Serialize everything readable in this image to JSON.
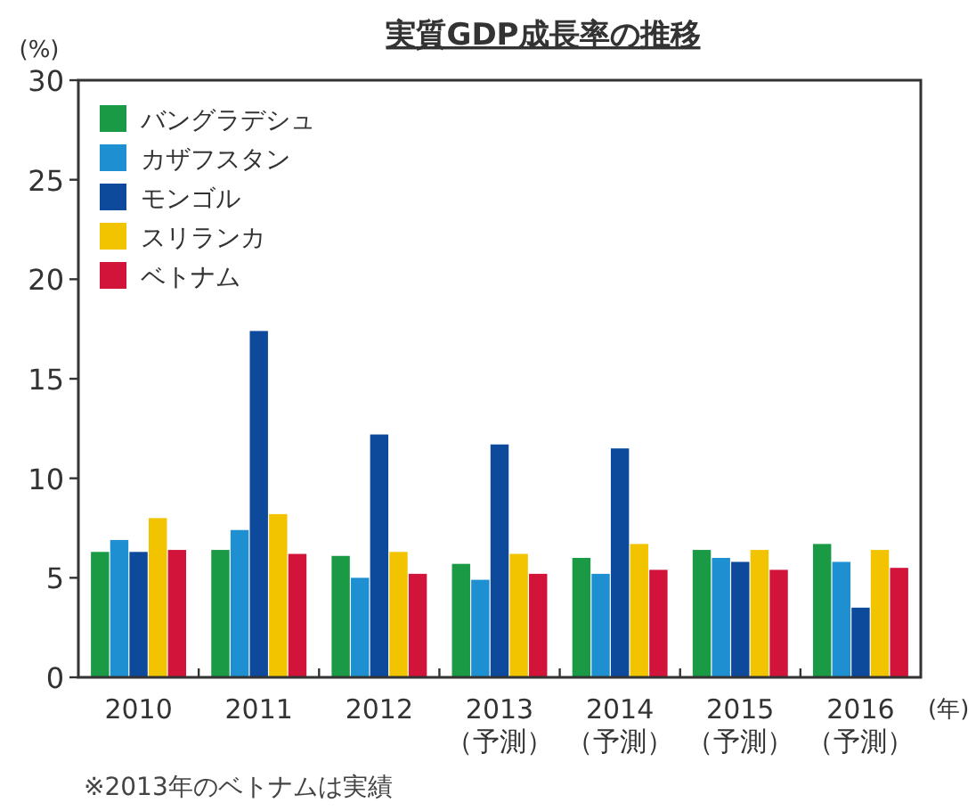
{
  "chart_data": {
    "type": "bar",
    "title": "実質GDP成長率の推移",
    "ylabel": "(%)",
    "xlabel": "(年)",
    "categories": [
      "2010",
      "2011",
      "2012",
      "2013\n（予測）",
      "2014\n（予測）",
      "2015\n（予測）",
      "2016\n（予測）"
    ],
    "series": [
      {
        "name": "バングラデシュ",
        "color": "#1a9a44",
        "values": [
          6.3,
          6.4,
          6.1,
          5.7,
          6.0,
          6.4,
          6.7
        ]
      },
      {
        "name": "カザフスタン",
        "color": "#1e8fd0",
        "values": [
          6.9,
          7.4,
          5.0,
          4.9,
          5.2,
          6.0,
          5.8
        ]
      },
      {
        "name": "モンゴル",
        "color": "#0d4a9c",
        "values": [
          6.3,
          17.4,
          12.2,
          11.7,
          11.5,
          5.8,
          3.5
        ]
      },
      {
        "name": "スリランカ",
        "color": "#f2c400",
        "values": [
          8.0,
          8.2,
          6.3,
          6.2,
          6.7,
          6.4,
          6.4
        ]
      },
      {
        "name": "ベトナム",
        "color": "#d2143a",
        "values": [
          6.4,
          6.2,
          5.2,
          5.2,
          5.4,
          5.4,
          5.5
        ]
      }
    ],
    "ylim": [
      0,
      30
    ],
    "yticks": [
      0,
      5,
      10,
      15,
      20,
      25,
      30
    ],
    "legend": "top left",
    "annotations": [
      "※2013年のベトナムは実績"
    ]
  }
}
